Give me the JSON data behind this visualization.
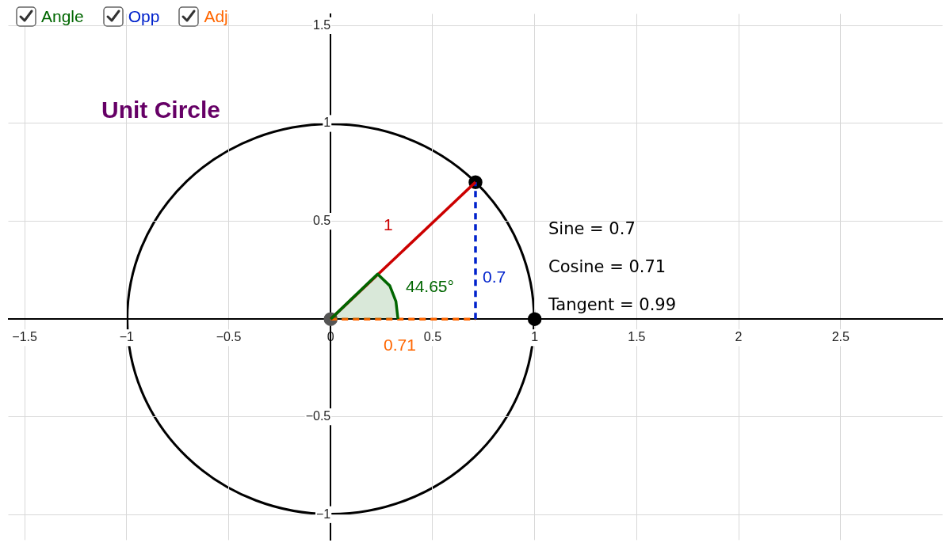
{
  "chart_data": {
    "type": "line",
    "title": "Unit Circle",
    "xlim": [
      -1.58,
      3.0
    ],
    "ylim": [
      -1.13,
      1.56
    ],
    "xticks": [
      -1.5,
      -1,
      -0.5,
      0,
      0.5,
      1,
      1.5,
      2,
      2.5
    ],
    "yticks": [
      -1,
      -0.5,
      0.5,
      1,
      1.5
    ],
    "grid": true,
    "legend": "top left",
    "marker": "none",
    "series": [
      {
        "type": "area",
        "name": "Angle",
        "color": "#006600",
        "x": [
          0,
          0.23,
          0.29,
          0.32,
          0.33
        ],
        "values": [
          0,
          0.23,
          0.17,
          0.09,
          0
        ]
      },
      {
        "color": "#cc0000",
        "x": [
          0,
          0.71
        ],
        "values": [
          0,
          0.7
        ]
      },
      {
        "name": "Opp",
        "color": "#0022cc",
        "line_style": "dashed",
        "x": [
          0.71,
          0.71
        ],
        "values": [
          0,
          0.7
        ]
      },
      {
        "name": "Adj",
        "color": "#ff6600",
        "line_style": "dashed",
        "x": [
          0,
          0.71
        ],
        "values": [
          0,
          0
        ]
      },
      {
        "type": "scatter",
        "marker": "circle",
        "x": [
          0,
          0.71,
          1
        ],
        "values": [
          0,
          0.7,
          0
        ],
        "colors": [
          "#555555",
          "#000000",
          "#000000"
        ]
      }
    ],
    "annotations": [
      "1",
      "44.65°",
      "0.7",
      "0.71",
      "Sine = 0.7",
      "Cosine = 0.71",
      "Tangent = 0.99"
    ]
  }
}
